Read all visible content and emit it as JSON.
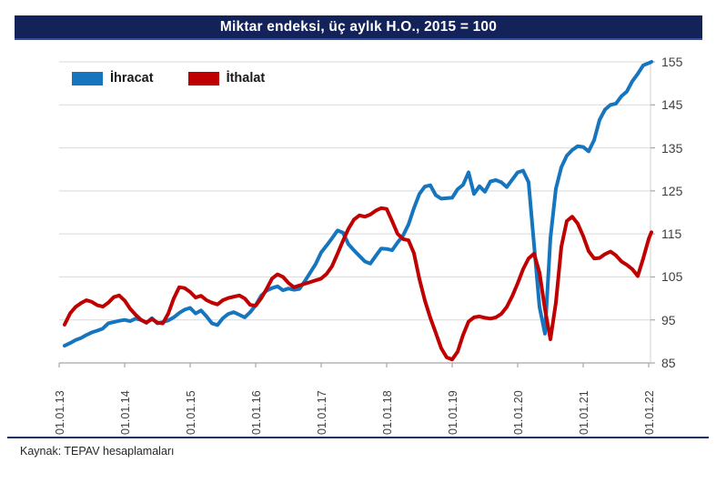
{
  "title": "Miktar endeksi, üç aylık H.O., 2015 = 100",
  "footer": {
    "source": "Kaynak: TEPAV hesaplamaları"
  },
  "legend": [
    {
      "label": "İhracat",
      "color": "#1675bf"
    },
    {
      "label": "İthalat",
      "color": "#c00000"
    }
  ],
  "colors": {
    "title_bar": "#14225a",
    "title_underline": "#3350a0",
    "grid": "#d9d9d9",
    "axis": "#a6a6a6",
    "tick_text": "#3f3f3f",
    "separator": "#1e2f63",
    "export_line": "#1675bf",
    "import_line": "#c00000"
  },
  "chart_data": {
    "type": "line",
    "title": "Miktar endeksi, üç aylık H.O., 2015 = 100",
    "x_frequency": "monthly",
    "x_start": "2013-02",
    "x_end": "2022-02",
    "x_tick_labels": [
      "01.01.13",
      "01.01.14",
      "01.01.15",
      "01.01.16",
      "01.01.17",
      "01.01.18",
      "01.01.19",
      "01.01.20",
      "01.01.21",
      "01.01.22"
    ],
    "y_ticks": [
      85,
      95,
      105,
      115,
      125,
      135,
      145,
      155
    ],
    "ylim": [
      85,
      155
    ],
    "grid": "horizontal",
    "legend_position": "top-left",
    "series": [
      {
        "name": "İhracat",
        "color": "#1675bf",
        "values": [
          89.0,
          89.6,
          90.3,
          90.8,
          91.5,
          92.1,
          92.5,
          93.0,
          94.2,
          94.5,
          94.8,
          95.0,
          94.7,
          95.3,
          95.0,
          94.3,
          95.4,
          94.2,
          94.5,
          94.9,
          95.6,
          96.6,
          97.4,
          97.8,
          96.5,
          97.2,
          95.8,
          94.2,
          93.8,
          95.4,
          96.4,
          96.8,
          96.2,
          95.6,
          96.8,
          98.4,
          100.6,
          101.8,
          102.4,
          102.8,
          101.9,
          102.3,
          102.0,
          102.2,
          104.0,
          106.0,
          108.0,
          110.7,
          112.3,
          114.0,
          115.8,
          115.3,
          112.6,
          111.2,
          109.9,
          108.6,
          108.1,
          109.9,
          111.6,
          111.5,
          111.2,
          113.0,
          114.6,
          117.2,
          121.0,
          124.3,
          126.0,
          126.3,
          124.0,
          123.2,
          123.3,
          123.4,
          125.4,
          126.4,
          129.3,
          124.3,
          126.1,
          124.8,
          127.2,
          127.5,
          127.0,
          125.9,
          127.6,
          129.3,
          129.7,
          127.0,
          112.5,
          98.0,
          91.8,
          114.0,
          125.5,
          130.5,
          133.2,
          134.5,
          135.4,
          135.2,
          134.2,
          136.8,
          141.5,
          143.9,
          145.0,
          145.3,
          147.0,
          148.1,
          150.5,
          152.2,
          154.2,
          154.7,
          155.0
        ]
      },
      {
        "name": "İthalat",
        "color": "#c00000",
        "values": [
          93.9,
          96.5,
          98.0,
          98.9,
          99.6,
          99.2,
          98.4,
          98.1,
          99.0,
          100.3,
          100.7,
          99.5,
          97.6,
          96.2,
          95.0,
          94.4,
          95.2,
          94.4,
          94.2,
          96.5,
          100.0,
          102.6,
          102.4,
          101.5,
          100.2,
          100.6,
          99.6,
          99.0,
          98.6,
          99.6,
          100.1,
          100.4,
          100.7,
          100.0,
          98.5,
          98.3,
          100.0,
          102.2,
          104.6,
          105.6,
          105.0,
          103.6,
          102.6,
          103.0,
          103.4,
          103.8,
          104.2,
          104.6,
          105.7,
          107.5,
          110.4,
          113.4,
          116.2,
          118.3,
          119.3,
          119.0,
          119.5,
          120.4,
          121.0,
          120.8,
          118.0,
          115.0,
          113.8,
          113.5,
          110.5,
          104.5,
          99.5,
          95.5,
          92.0,
          88.4,
          86.3,
          85.8,
          87.6,
          91.5,
          94.6,
          95.6,
          95.8,
          95.5,
          95.3,
          95.6,
          96.4,
          98.0,
          100.5,
          103.5,
          106.8,
          109.3,
          110.4,
          106.0,
          97.5,
          90.5,
          99.0,
          112.0,
          118.0,
          119.0,
          117.4,
          114.5,
          111.0,
          109.3,
          109.4,
          110.3,
          110.9,
          110.0,
          108.6,
          107.8,
          106.8,
          105.2,
          109.3,
          113.8,
          115.4
        ]
      }
    ]
  }
}
